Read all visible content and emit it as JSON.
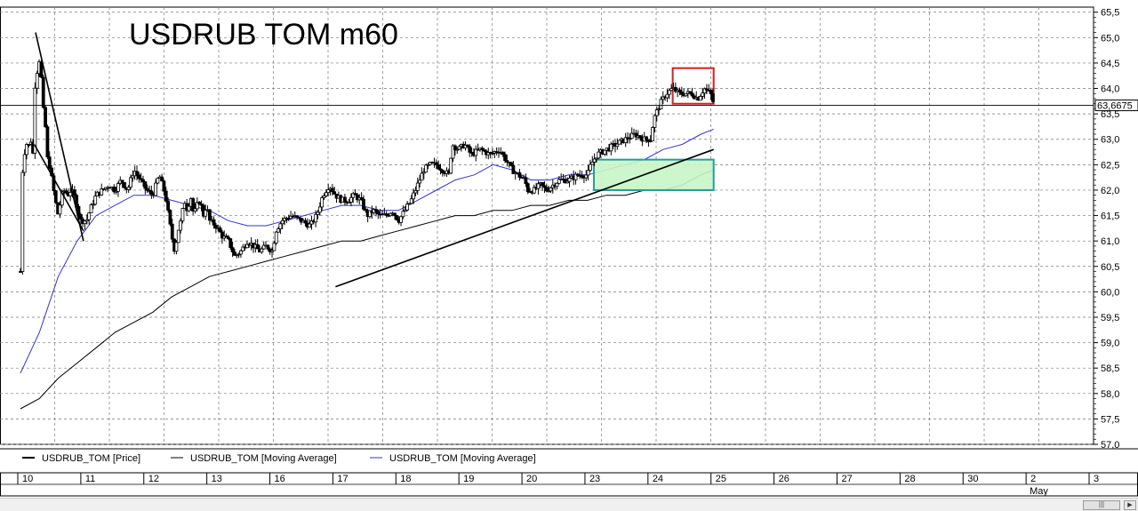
{
  "chart_data": {
    "type": "candlestick",
    "title": "USDRUB   TOM   m60",
    "ylim": [
      57.0,
      65.6
    ],
    "y_ticks": [
      "57,0",
      "57,5",
      "58,0",
      "58,5",
      "59,0",
      "59,5",
      "60,0",
      "60,5",
      "61,0",
      "61,5",
      "62,0",
      "62,5",
      "63,0",
      "63,5",
      "64,0",
      "64,5",
      "65,0",
      "65,5"
    ],
    "x_labels": [
      "10",
      "11",
      "12",
      "13",
      "16",
      "17",
      "18",
      "19",
      "20",
      "23",
      "24",
      "25",
      "26",
      "27",
      "28",
      "30",
      "2",
      "3"
    ],
    "x_month_label": "May",
    "last_price": 63.6675,
    "last_price_label": "63,6675",
    "legend": [
      {
        "label": "USDRUB_TOM [Price]",
        "color": "#000000"
      },
      {
        "label": "USDRUB_TOM [Moving Average]",
        "color": "#000000"
      },
      {
        "label": "USDRUB_TOM [Moving Average]",
        "color": "#3333cc"
      }
    ],
    "price_path": [
      [
        0,
        60.4
      ],
      [
        0.02,
        60.3
      ],
      [
        0.04,
        63.5
      ],
      [
        0.06,
        62.6
      ],
      [
        0.08,
        63.1
      ],
      [
        0.1,
        62.9
      ],
      [
        0.12,
        63.0
      ],
      [
        0.14,
        62.8
      ],
      [
        0.16,
        63.0
      ],
      [
        0.18,
        62.9
      ],
      [
        0.2,
        62.7
      ],
      [
        0.22,
        63.4
      ],
      [
        0.24,
        64.6
      ],
      [
        0.26,
        64.2
      ],
      [
        0.28,
        64.9
      ],
      [
        0.3,
        64.5
      ],
      [
        0.33,
        64.2
      ],
      [
        0.36,
        63.6
      ],
      [
        0.4,
        63.2
      ],
      [
        0.43,
        62.6
      ],
      [
        0.46,
        62.5
      ],
      [
        0.5,
        62.2
      ],
      [
        0.55,
        61.8
      ],
      [
        0.6,
        61.5
      ],
      [
        0.65,
        61.9
      ],
      [
        0.7,
        62.0
      ],
      [
        0.75,
        61.9
      ],
      [
        0.8,
        62.0
      ],
      [
        0.85,
        61.9
      ],
      [
        0.9,
        61.7
      ],
      [
        0.95,
        61.4
      ],
      [
        1.0,
        61.4
      ],
      [
        1.05,
        61.4
      ],
      [
        1.1,
        61.6
      ],
      [
        1.2,
        61.9
      ],
      [
        1.3,
        62.0
      ],
      [
        1.4,
        62.1
      ],
      [
        1.5,
        62.0
      ],
      [
        1.6,
        62.2
      ],
      [
        1.7,
        62.0
      ],
      [
        1.8,
        62.4
      ],
      [
        1.9,
        62.2
      ],
      [
        2.0,
        62.0
      ],
      [
        2.1,
        61.9
      ],
      [
        2.2,
        62.3
      ],
      [
        2.3,
        61.9
      ],
      [
        2.4,
        61.1
      ],
      [
        2.45,
        60.8
      ],
      [
        2.5,
        61.2
      ],
      [
        2.55,
        61.4
      ],
      [
        2.6,
        61.8
      ],
      [
        2.65,
        61.6
      ],
      [
        2.7,
        61.9
      ],
      [
        2.75,
        61.5
      ],
      [
        2.8,
        61.7
      ],
      [
        2.85,
        61.8
      ],
      [
        2.9,
        61.5
      ],
      [
        2.95,
        61.7
      ],
      [
        3.0,
        61.4
      ],
      [
        3.1,
        61.3
      ],
      [
        3.2,
        61.1
      ],
      [
        3.3,
        61.0
      ],
      [
        3.4,
        60.7
      ],
      [
        3.5,
        60.8
      ],
      [
        3.6,
        61.0
      ],
      [
        3.7,
        60.9
      ],
      [
        3.8,
        60.8
      ],
      [
        3.9,
        60.9
      ],
      [
        4.0,
        60.8
      ],
      [
        4.05,
        61.2
      ],
      [
        4.15,
        61.4
      ],
      [
        4.3,
        61.5
      ],
      [
        4.45,
        61.4
      ],
      [
        4.6,
        61.3
      ],
      [
        4.7,
        61.5
      ],
      [
        4.8,
        61.9
      ],
      [
        4.9,
        62.1
      ],
      [
        5.0,
        61.9
      ],
      [
        5.1,
        61.8
      ],
      [
        5.2,
        61.8
      ],
      [
        5.3,
        61.9
      ],
      [
        5.4,
        61.8
      ],
      [
        5.5,
        61.5
      ],
      [
        5.6,
        61.6
      ],
      [
        5.7,
        61.5
      ],
      [
        5.8,
        61.5
      ],
      [
        5.9,
        61.6
      ],
      [
        6.0,
        61.4
      ],
      [
        6.1,
        61.6
      ],
      [
        6.2,
        61.8
      ],
      [
        6.3,
        62.1
      ],
      [
        6.4,
        62.4
      ],
      [
        6.5,
        62.5
      ],
      [
        6.6,
        62.5
      ],
      [
        6.7,
        62.4
      ],
      [
        6.8,
        62.3
      ],
      [
        6.85,
        62.9
      ],
      [
        6.95,
        62.8
      ],
      [
        7.05,
        62.9
      ],
      [
        7.15,
        62.7
      ],
      [
        7.3,
        62.8
      ],
      [
        7.45,
        62.7
      ],
      [
        7.6,
        62.8
      ],
      [
        7.7,
        62.6
      ],
      [
        7.8,
        62.4
      ],
      [
        7.9,
        62.3
      ],
      [
        8.0,
        62.2
      ],
      [
        8.05,
        62.0
      ],
      [
        8.15,
        62.0
      ],
      [
        8.25,
        62.1
      ],
      [
        8.35,
        62.0
      ],
      [
        8.45,
        62.1
      ],
      [
        8.55,
        62.2
      ],
      [
        8.7,
        62.2
      ],
      [
        8.85,
        62.3
      ],
      [
        9.0,
        62.3
      ],
      [
        9.05,
        62.5
      ],
      [
        9.15,
        62.7
      ],
      [
        9.3,
        62.8
      ],
      [
        9.45,
        62.9
      ],
      [
        9.6,
        63.0
      ],
      [
        9.75,
        63.1
      ],
      [
        9.9,
        63.0
      ],
      [
        10.0,
        63.0
      ],
      [
        10.05,
        63.4
      ],
      [
        10.15,
        63.7
      ],
      [
        10.25,
        63.9
      ],
      [
        10.35,
        64.0
      ],
      [
        10.45,
        63.9
      ],
      [
        10.55,
        63.9
      ],
      [
        10.65,
        63.9
      ],
      [
        10.75,
        63.8
      ],
      [
        10.85,
        64.0
      ],
      [
        10.95,
        63.9
      ],
      [
        11.0,
        63.7
      ]
    ],
    "ma_blue": [
      [
        0,
        58.4
      ],
      [
        0.3,
        59.2
      ],
      [
        0.6,
        60.3
      ],
      [
        0.9,
        61.0
      ],
      [
        1.2,
        61.5
      ],
      [
        1.5,
        61.7
      ],
      [
        1.8,
        61.9
      ],
      [
        2.1,
        61.9
      ],
      [
        2.4,
        61.8
      ],
      [
        2.7,
        61.7
      ],
      [
        3.0,
        61.6
      ],
      [
        3.3,
        61.4
      ],
      [
        3.6,
        61.3
      ],
      [
        3.9,
        61.3
      ],
      [
        4.2,
        61.4
      ],
      [
        4.5,
        61.5
      ],
      [
        4.8,
        61.6
      ],
      [
        5.1,
        61.7
      ],
      [
        5.4,
        61.7
      ],
      [
        5.7,
        61.6
      ],
      [
        6.0,
        61.6
      ],
      [
        6.3,
        61.8
      ],
      [
        6.6,
        62.0
      ],
      [
        6.9,
        62.2
      ],
      [
        7.2,
        62.3
      ],
      [
        7.5,
        62.5
      ],
      [
        7.8,
        62.4
      ],
      [
        8.1,
        62.2
      ],
      [
        8.4,
        62.2
      ],
      [
        8.7,
        62.3
      ],
      [
        9.0,
        62.3
      ],
      [
        9.3,
        62.4
      ],
      [
        9.6,
        62.5
      ],
      [
        9.9,
        62.6
      ],
      [
        10.2,
        62.8
      ],
      [
        10.5,
        62.9
      ],
      [
        10.8,
        63.1
      ],
      [
        11.0,
        63.2
      ]
    ],
    "ma_black": [
      [
        0,
        57.7
      ],
      [
        0.3,
        57.9
      ],
      [
        0.6,
        58.3
      ],
      [
        0.9,
        58.6
      ],
      [
        1.2,
        58.9
      ],
      [
        1.5,
        59.2
      ],
      [
        1.8,
        59.4
      ],
      [
        2.1,
        59.6
      ],
      [
        2.4,
        59.9
      ],
      [
        2.7,
        60.1
      ],
      [
        3.0,
        60.3
      ],
      [
        3.3,
        60.4
      ],
      [
        3.6,
        60.5
      ],
      [
        3.9,
        60.6
      ],
      [
        4.2,
        60.7
      ],
      [
        4.5,
        60.8
      ],
      [
        4.8,
        60.9
      ],
      [
        5.1,
        61.0
      ],
      [
        5.4,
        61.0
      ],
      [
        5.7,
        61.1
      ],
      [
        6.0,
        61.2
      ],
      [
        6.3,
        61.3
      ],
      [
        6.6,
        61.4
      ],
      [
        6.9,
        61.5
      ],
      [
        7.2,
        61.5
      ],
      [
        7.5,
        61.6
      ],
      [
        7.8,
        61.6
      ],
      [
        8.1,
        61.7
      ],
      [
        8.4,
        61.7
      ],
      [
        8.7,
        61.8
      ],
      [
        9.0,
        61.8
      ],
      [
        9.3,
        61.9
      ],
      [
        9.6,
        61.9
      ],
      [
        9.9,
        62.0
      ],
      [
        10.2,
        62.0
      ],
      [
        10.5,
        62.1
      ],
      [
        10.8,
        62.3
      ],
      [
        11.0,
        62.4
      ]
    ],
    "trend_lines": [
      {
        "from": [
          5.0,
          60.1
        ],
        "to": [
          11.0,
          62.8
        ],
        "color": "#000000"
      },
      {
        "from": [
          0.24,
          65.1
        ],
        "to": [
          1.0,
          61.0
        ],
        "color": "#000000"
      },
      {
        "from": [
          0.22,
          62.9
        ],
        "to": [
          1.0,
          61.2
        ],
        "color": "#000000"
      }
    ],
    "boxes": [
      {
        "from": [
          9.1,
          62.0
        ],
        "to": [
          11.0,
          62.6
        ],
        "fill": "#c8f5c8",
        "stroke": "#2a9a9a"
      },
      {
        "from": [
          10.35,
          63.7
        ],
        "to": [
          11.0,
          64.4
        ],
        "fill": "none",
        "stroke": "#d42020"
      }
    ]
  }
}
